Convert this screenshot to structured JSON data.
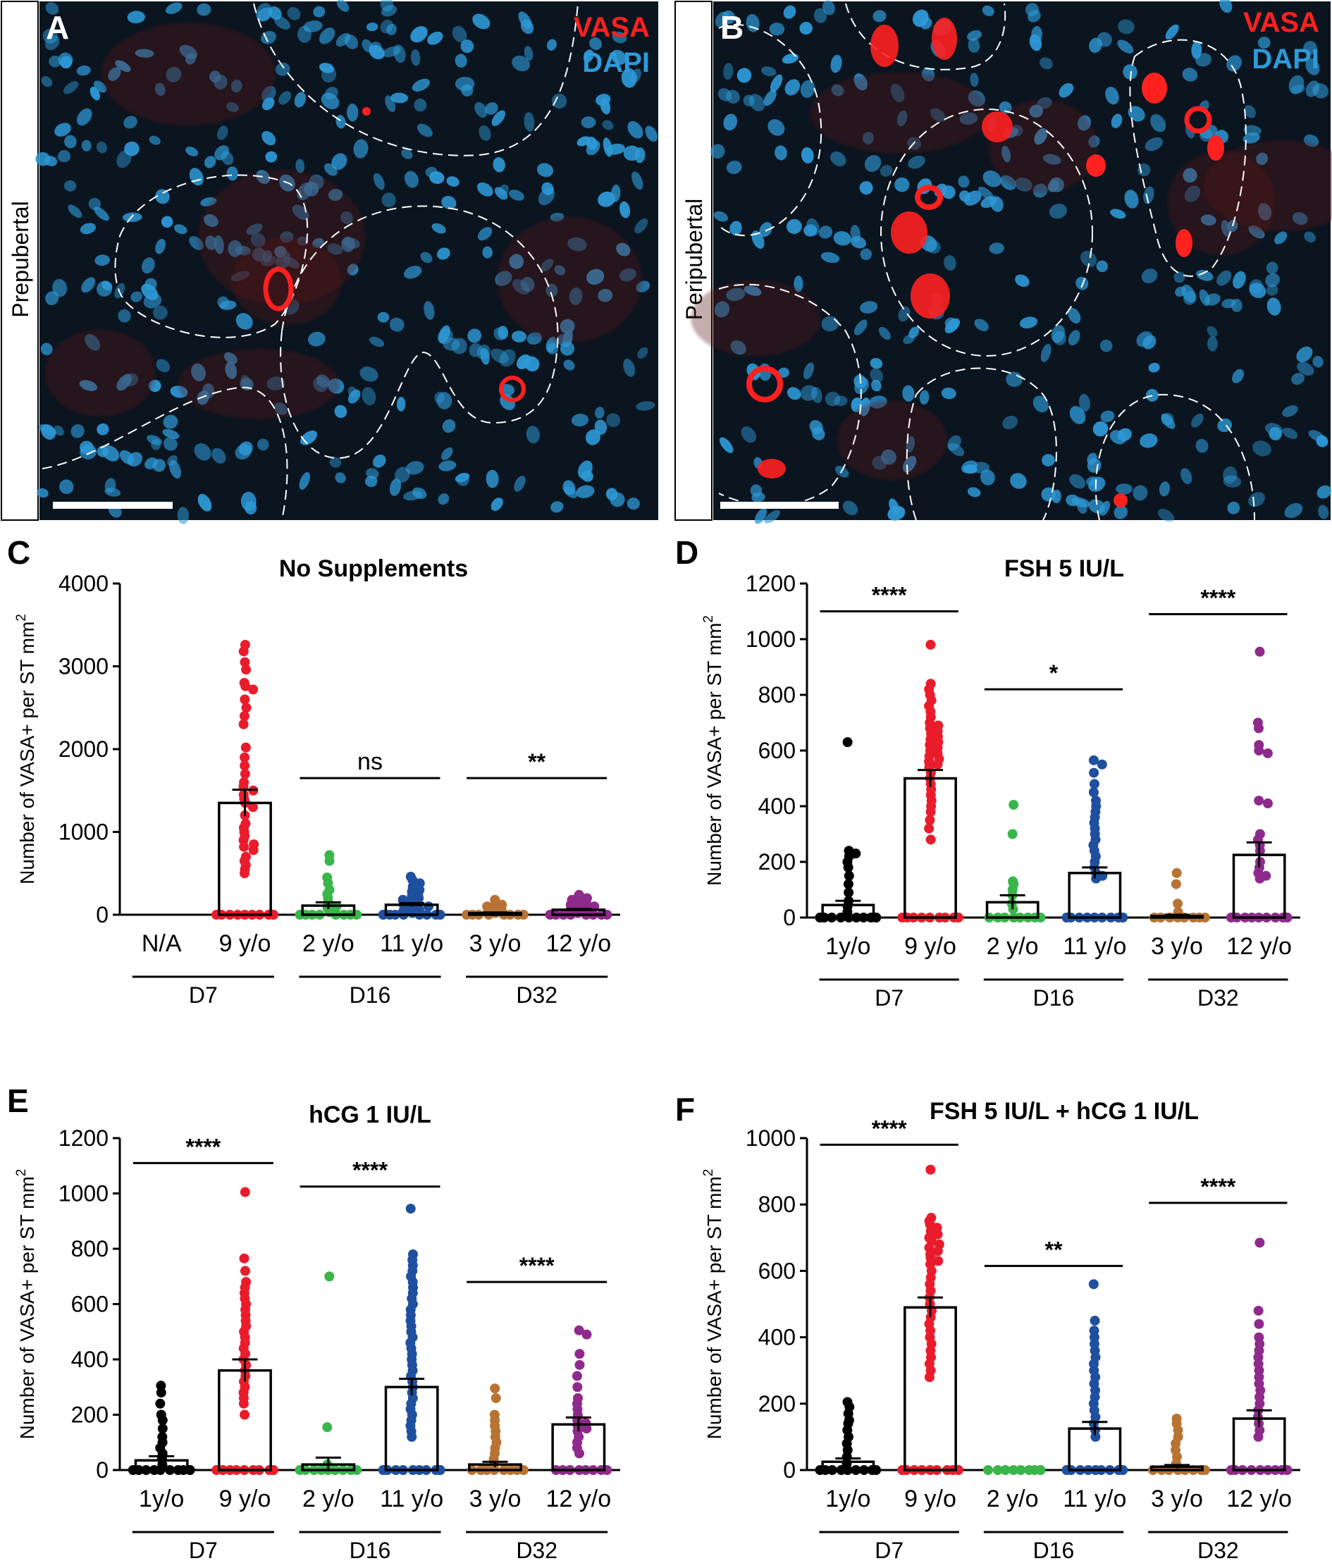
{
  "colors": {
    "d7_young": "#000000",
    "d7_old": "#ea1c2c",
    "d16_young": "#3ab54a",
    "d16_old": "#1f4f9f",
    "d32_young": "#b87333",
    "d32_old": "#8e2a8b",
    "vasa": "#ff2020",
    "dapi": "#2e9ad8"
  },
  "panels": {
    "A": {
      "letter": "A",
      "row_label": "Prepubertal",
      "legend1": "VASA",
      "legend2": "DAPI"
    },
    "B": {
      "letter": "B",
      "row_label": "Peripubertal",
      "legend1": "VASA",
      "legend2": "DAPI"
    }
  },
  "chart_data": [
    {
      "panel": "C",
      "type": "bar",
      "title": "No Supplements",
      "ylabel": "Number of VASA+ per ST mm2",
      "ylim": [
        0,
        4000
      ],
      "yticks": [
        0,
        1000,
        2000,
        3000,
        4000
      ],
      "categories": [
        "N/A",
        "9 y/o",
        "2 y/o",
        "11 y/o",
        "3 y/o",
        "12 y/o"
      ],
      "groups": [
        "D7",
        "D16",
        "D32"
      ],
      "series": [
        {
          "name": "N/A",
          "mean": null,
          "sem": null,
          "points": []
        },
        {
          "name": "9 y/o",
          "mean": 1350,
          "sem": 160,
          "points": [
            3260,
            3180,
            3050,
            2960,
            2800,
            2760,
            2720,
            2600,
            2500,
            2400,
            2300,
            2020,
            1900,
            1800,
            1700,
            1600,
            1550,
            1500,
            1450,
            1400,
            1350,
            1300,
            1200,
            1100,
            1050,
            1000,
            950,
            900,
            850,
            820,
            780,
            700,
            650,
            600,
            550,
            500,
            0,
            0,
            0,
            0,
            0,
            0,
            0,
            0,
            0,
            0
          ]
        },
        {
          "name": "2 y/o",
          "mean": 110,
          "sem": 40,
          "points": [
            720,
            650,
            450,
            380,
            300,
            250,
            200,
            150,
            100,
            80,
            50,
            30,
            0,
            0,
            0,
            0,
            0,
            0,
            0,
            0
          ]
        },
        {
          "name": "11 y/o",
          "mean": 120,
          "sem": 20,
          "points": [
            460,
            420,
            380,
            340,
            300,
            280,
            250,
            220,
            200,
            180,
            160,
            140,
            120,
            100,
            80,
            60,
            40,
            20,
            0,
            0,
            0,
            0,
            0,
            0,
            0,
            0,
            0,
            0
          ]
        },
        {
          "name": "3 y/o",
          "mean": 20,
          "sem": 8,
          "points": [
            180,
            150,
            120,
            100,
            80,
            60,
            40,
            20,
            0,
            0,
            0,
            0,
            0,
            0,
            0,
            0
          ]
        },
        {
          "name": "12 y/o",
          "mean": 60,
          "sem": 10,
          "points": [
            240,
            220,
            200,
            180,
            160,
            140,
            120,
            100,
            80,
            60,
            40,
            20,
            0,
            0,
            0,
            0,
            0,
            0,
            0,
            0
          ]
        }
      ],
      "significance": [
        {
          "from": 2,
          "to": 3,
          "label": "ns",
          "value": 1650
        },
        {
          "from": 4,
          "to": 5,
          "label": "**",
          "value": 1650
        }
      ]
    },
    {
      "panel": "D",
      "type": "bar",
      "title": "FSH 5 IU/L",
      "ylabel": "Number of VASA+ per ST mm2",
      "ylim": [
        0,
        1200
      ],
      "yticks": [
        0,
        200,
        400,
        600,
        800,
        1000,
        1200
      ],
      "categories": [
        "1y/o",
        "9 y/o",
        "2 y/o",
        "11 y/o",
        "3 y/o",
        "12 y/o"
      ],
      "groups": [
        "D7",
        "D16",
        "D32"
      ],
      "series": [
        {
          "name": "1y/o",
          "mean": 45,
          "sem": 15,
          "points": [
            630,
            240,
            230,
            220,
            200,
            180,
            150,
            120,
            90,
            60,
            40,
            20,
            0,
            0,
            0,
            0,
            0,
            0,
            0,
            0,
            0,
            0,
            0,
            0
          ]
        },
        {
          "name": "9 y/o",
          "mean": 500,
          "sem": 30,
          "points": [
            980,
            840,
            820,
            800,
            780,
            760,
            740,
            720,
            700,
            690,
            680,
            670,
            660,
            650,
            640,
            630,
            620,
            610,
            600,
            590,
            580,
            570,
            560,
            550,
            540,
            520,
            500,
            480,
            460,
            440,
            420,
            400,
            380,
            350,
            320,
            280,
            0,
            0,
            0,
            0,
            0,
            0,
            0,
            0,
            0,
            0
          ]
        },
        {
          "name": "2 y/o",
          "mean": 55,
          "sem": 25,
          "points": [
            405,
            300,
            130,
            120,
            100,
            80,
            50,
            30,
            0,
            0,
            0,
            0,
            0,
            0,
            0,
            0
          ]
        },
        {
          "name": "11 y/o",
          "mean": 160,
          "sem": 20,
          "points": [
            565,
            550,
            520,
            480,
            450,
            420,
            400,
            380,
            360,
            340,
            320,
            300,
            280,
            260,
            240,
            220,
            200,
            180,
            160,
            150,
            140,
            0,
            0,
            0,
            0,
            0,
            0,
            0,
            0,
            0,
            0,
            0,
            0
          ]
        },
        {
          "name": "3 y/o",
          "mean": 5,
          "sem": 5,
          "points": [
            160,
            120,
            50,
            20,
            0,
            0,
            0,
            0,
            0,
            0,
            0,
            0
          ]
        },
        {
          "name": "12 y/o",
          "mean": 225,
          "sem": 45,
          "points": [
            955,
            700,
            680,
            620,
            600,
            590,
            420,
            410,
            300,
            280,
            260,
            240,
            200,
            180,
            160,
            150,
            140,
            0,
            0,
            0,
            0,
            0,
            0,
            0,
            0,
            0,
            0
          ]
        }
      ],
      "significance": [
        {
          "from": 0,
          "to": 1,
          "label": "****",
          "value": 1100
        },
        {
          "from": 2,
          "to": 3,
          "label": "*",
          "value": 820
        },
        {
          "from": 4,
          "to": 5,
          "label": "****",
          "value": 1090
        }
      ]
    },
    {
      "panel": "E",
      "type": "bar",
      "title": "hCG 1 IU/L",
      "ylabel": "Number of VASA+ per ST mm2",
      "ylim": [
        0,
        1200
      ],
      "yticks": [
        0,
        200,
        400,
        600,
        800,
        1000,
        1200
      ],
      "categories": [
        "1y/o",
        "9 y/o",
        "2 y/o",
        "11 y/o",
        "3 y/o",
        "12 y/o"
      ],
      "groups": [
        "D7",
        "D16",
        "D32"
      ],
      "series": [
        {
          "name": "1y/o",
          "mean": 35,
          "sem": 15,
          "points": [
            305,
            280,
            240,
            200,
            180,
            150,
            120,
            100,
            80,
            60,
            40,
            20,
            0,
            0,
            0,
            0,
            0,
            0,
            0,
            0,
            0,
            0
          ]
        },
        {
          "name": "9 y/o",
          "mean": 360,
          "sem": 40,
          "points": [
            1005,
            765,
            720,
            680,
            660,
            640,
            620,
            600,
            580,
            560,
            540,
            520,
            500,
            480,
            460,
            440,
            420,
            400,
            380,
            360,
            340,
            320,
            300,
            280,
            260,
            240,
            200,
            0,
            0,
            0,
            0,
            0,
            0,
            0,
            0,
            0,
            0
          ]
        },
        {
          "name": "2 y/o",
          "mean": 20,
          "sem": 25,
          "points": [
            700,
            155,
            20,
            0,
            0,
            0,
            0,
            0,
            0,
            0,
            0,
            0
          ]
        },
        {
          "name": "11 y/o",
          "mean": 300,
          "sem": 30,
          "points": [
            945,
            780,
            760,
            740,
            720,
            700,
            680,
            660,
            640,
            620,
            600,
            580,
            560,
            540,
            520,
            500,
            480,
            460,
            440,
            420,
            400,
            380,
            360,
            340,
            320,
            300,
            280,
            260,
            240,
            220,
            200,
            180,
            160,
            140,
            120,
            0,
            0,
            0,
            0,
            0,
            0,
            0,
            0,
            0,
            0,
            0,
            0
          ]
        },
        {
          "name": "3 y/o",
          "mean": 20,
          "sem": 10,
          "points": [
            295,
            260,
            200,
            180,
            160,
            140,
            120,
            100,
            80,
            60,
            40,
            20,
            0,
            0,
            0,
            0,
            0,
            0,
            0,
            0
          ]
        },
        {
          "name": "12 y/o",
          "mean": 165,
          "sem": 25,
          "points": [
            505,
            490,
            420,
            380,
            340,
            300,
            260,
            240,
            220,
            200,
            180,
            170,
            160,
            150,
            140,
            120,
            100,
            80,
            60,
            0,
            0,
            0,
            0,
            0,
            0,
            0,
            0
          ]
        }
      ],
      "significance": [
        {
          "from": 0,
          "to": 1,
          "label": "****",
          "value": 1110
        },
        {
          "from": 2,
          "to": 3,
          "label": "****",
          "value": 1025
        },
        {
          "from": 4,
          "to": 5,
          "label": "****",
          "value": 680
        }
      ]
    },
    {
      "panel": "F",
      "type": "bar",
      "title": "FSH 5 IU/L + hCG 1 IU/L",
      "ylabel": "Number of VASA+ per ST mm2",
      "ylim": [
        0,
        1000
      ],
      "yticks": [
        0,
        200,
        400,
        600,
        800,
        1000
      ],
      "categories": [
        "1y/o",
        "9 y/o",
        "2 y/o",
        "11 y/o",
        "3 y/o",
        "12 y/o"
      ],
      "groups": [
        "D7",
        "D16",
        "D32"
      ],
      "series": [
        {
          "name": "1y/o",
          "mean": 25,
          "sem": 10,
          "points": [
            205,
            190,
            170,
            150,
            140,
            120,
            100,
            80,
            60,
            40,
            20,
            0,
            0,
            0,
            0,
            0,
            0,
            0,
            0,
            0
          ]
        },
        {
          "name": "9 y/o",
          "mean": 490,
          "sem": 30,
          "points": [
            905,
            760,
            750,
            740,
            730,
            720,
            710,
            700,
            690,
            680,
            670,
            660,
            650,
            640,
            630,
            620,
            600,
            580,
            560,
            540,
            520,
            500,
            480,
            460,
            440,
            420,
            400,
            380,
            360,
            340,
            320,
            300,
            280,
            0,
            0,
            0,
            0,
            0,
            0,
            0,
            0,
            0,
            0
          ]
        },
        {
          "name": "2 y/o",
          "mean": 0,
          "sem": 0,
          "points": [
            0,
            0,
            0,
            0,
            0,
            0,
            0,
            0
          ]
        },
        {
          "name": "11 y/o",
          "mean": 125,
          "sem": 20,
          "points": [
            560,
            450,
            420,
            400,
            380,
            360,
            340,
            320,
            300,
            280,
            260,
            240,
            220,
            200,
            180,
            160,
            140,
            120,
            100,
            0,
            0,
            0,
            0,
            0,
            0,
            0,
            0,
            0,
            0,
            0
          ]
        },
        {
          "name": "3 y/o",
          "mean": 10,
          "sem": 5,
          "points": [
            155,
            140,
            120,
            100,
            80,
            60,
            40,
            20,
            0,
            0,
            0,
            0,
            0,
            0,
            0,
            0
          ]
        },
        {
          "name": "12 y/o",
          "mean": 155,
          "sem": 25,
          "points": [
            685,
            480,
            440,
            400,
            380,
            360,
            340,
            320,
            300,
            280,
            260,
            240,
            220,
            200,
            180,
            160,
            140,
            120,
            100,
            0,
            0,
            0,
            0,
            0,
            0,
            0,
            0,
            0
          ]
        }
      ],
      "significance": [
        {
          "from": 0,
          "to": 1,
          "label": "****",
          "value": 980
        },
        {
          "from": 2,
          "to": 3,
          "label": "**",
          "value": 615
        },
        {
          "from": 4,
          "to": 5,
          "label": "****",
          "value": 805
        }
      ]
    }
  ]
}
